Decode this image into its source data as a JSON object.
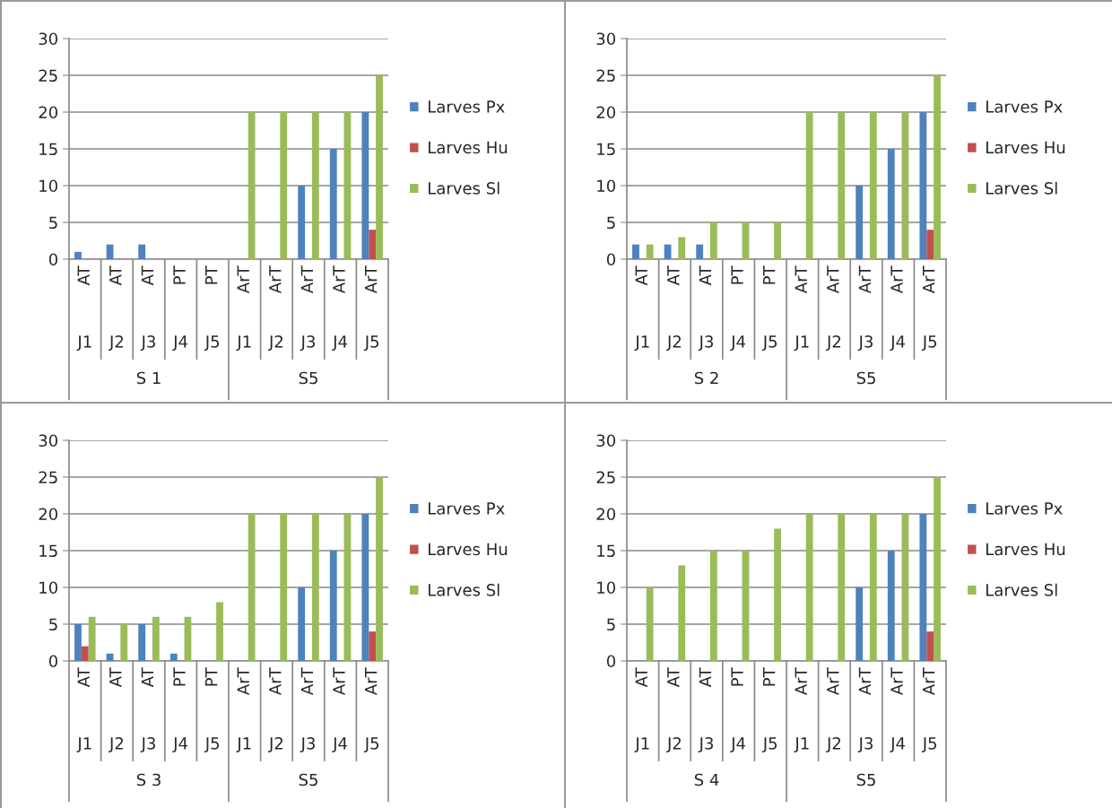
{
  "chart_data": [
    {
      "type": "bar",
      "categories": [
        "AT",
        "AT",
        "AT",
        "PT",
        "PT",
        "ArT",
        "ArT",
        "ArT",
        "ArT",
        "ArT"
      ],
      "ylim": [
        0,
        30
      ],
      "yticks": [
        0,
        5,
        10,
        15,
        20,
        25,
        30
      ],
      "grid": "y",
      "legend": "right",
      "annotations": [
        "J1",
        "J2",
        "J3",
        "J4",
        "J5",
        "J1",
        "J2",
        "J3",
        "J4",
        "J5",
        "S 1",
        "S5"
      ],
      "series": [
        {
          "name": "Larves Px",
          "color": "#4f81bd",
          "values": [
            1,
            2,
            2,
            null,
            null,
            null,
            null,
            10,
            15,
            20
          ]
        },
        {
          "name": "Larves Hu",
          "color": "#c0504d",
          "values": [
            null,
            null,
            null,
            null,
            null,
            null,
            null,
            null,
            null,
            4
          ]
        },
        {
          "name": "Larves Sl",
          "color": "#9bbb59",
          "values": [
            null,
            null,
            null,
            null,
            null,
            20,
            20,
            20,
            20,
            25
          ]
        }
      ]
    },
    {
      "type": "bar",
      "categories": [
        "AT",
        "AT",
        "AT",
        "PT",
        "PT",
        "ArT",
        "ArT",
        "ArT",
        "ArT",
        "ArT"
      ],
      "ylim": [
        0,
        30
      ],
      "yticks": [
        0,
        5,
        10,
        15,
        20,
        25,
        30
      ],
      "grid": "y",
      "legend": "right",
      "annotations": [
        "J1",
        "J2",
        "J3",
        "J4",
        "J5",
        "J1",
        "J2",
        "J3",
        "J4",
        "J5",
        "S 2",
        "S5"
      ],
      "series": [
        {
          "name": "Larves Px",
          "color": "#4f81bd",
          "values": [
            2,
            2,
            2,
            null,
            null,
            null,
            null,
            10,
            15,
            20
          ]
        },
        {
          "name": "Larves Hu",
          "color": "#c0504d",
          "values": [
            null,
            null,
            null,
            null,
            null,
            null,
            null,
            null,
            null,
            4
          ]
        },
        {
          "name": "Larves Sl",
          "color": "#9bbb59",
          "values": [
            2,
            3,
            5,
            5,
            5,
            20,
            20,
            20,
            20,
            25
          ]
        }
      ]
    },
    {
      "type": "bar",
      "categories": [
        "AT",
        "AT",
        "AT",
        "PT",
        "PT",
        "ArT",
        "ArT",
        "ArT",
        "ArT",
        "ArT"
      ],
      "ylim": [
        0,
        30
      ],
      "yticks": [
        0,
        5,
        10,
        15,
        20,
        25,
        30
      ],
      "grid": "y",
      "legend": "right",
      "annotations": [
        "J1",
        "J2",
        "J3",
        "J4",
        "J5",
        "J1",
        "J2",
        "J3",
        "J4",
        "J5",
        "S 3",
        "S5"
      ],
      "series": [
        {
          "name": "Larves Px",
          "color": "#4f81bd",
          "values": [
            5,
            1,
            5,
            1,
            null,
            null,
            null,
            10,
            15,
            20
          ]
        },
        {
          "name": "Larves Hu",
          "color": "#c0504d",
          "values": [
            2,
            null,
            null,
            null,
            null,
            null,
            null,
            null,
            null,
            4
          ]
        },
        {
          "name": "Larves Sl",
          "color": "#9bbb59",
          "values": [
            6,
            5,
            6,
            6,
            8,
            20,
            20,
            20,
            20,
            25
          ]
        }
      ]
    },
    {
      "type": "bar",
      "categories": [
        "AT",
        "AT",
        "AT",
        "PT",
        "PT",
        "ArT",
        "ArT",
        "ArT",
        "ArT",
        "ArT"
      ],
      "ylim": [
        0,
        30
      ],
      "yticks": [
        0,
        5,
        10,
        15,
        20,
        25,
        30
      ],
      "grid": "y",
      "legend": "right",
      "annotations": [
        "J1",
        "J2",
        "J3",
        "J4",
        "J5",
        "J1",
        "J2",
        "J3",
        "J4",
        "J5",
        "S 4",
        "S5"
      ],
      "series": [
        {
          "name": "Larves Px",
          "color": "#4f81bd",
          "values": [
            null,
            null,
            null,
            null,
            null,
            null,
            null,
            10,
            15,
            20
          ]
        },
        {
          "name": "Larves Hu",
          "color": "#c0504d",
          "values": [
            null,
            null,
            null,
            null,
            null,
            null,
            null,
            null,
            null,
            4
          ]
        },
        {
          "name": "Larves Sl",
          "color": "#9bbb59",
          "values": [
            10,
            13,
            15,
            15,
            18,
            20,
            20,
            20,
            20,
            25
          ]
        }
      ]
    }
  ]
}
